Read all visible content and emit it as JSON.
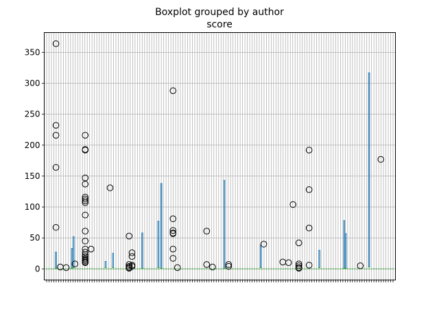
{
  "chart_data": {
    "type": "boxplot",
    "title": "Boxplot grouped by author",
    "subtitle": "score",
    "xlabel": "",
    "ylabel": "",
    "ylim": [
      -18,
      382
    ],
    "yticks": [
      0,
      50,
      100,
      150,
      200,
      250,
      300,
      350
    ],
    "grid": true,
    "category_count": 146,
    "category_labels_legible": false,
    "colors": {
      "box": "#1f77b4",
      "median": "#2ca02c",
      "outlier": "#000000",
      "grid": "#b0b0b0"
    },
    "notable_boxes": [
      {
        "position": 8,
        "q1": 1,
        "q3": 27
      },
      {
        "position": 19,
        "q1": 1,
        "q3": 33
      },
      {
        "position": 20,
        "q1": 2,
        "q3": 52
      },
      {
        "position": 42,
        "q1": 2,
        "q3": 12
      },
      {
        "position": 47,
        "q1": 2,
        "q3": 25
      },
      {
        "position": 67,
        "q1": 1,
        "q3": 58
      },
      {
        "position": 78,
        "q1": 2,
        "q3": 77
      },
      {
        "position": 80,
        "q1": 1,
        "q3": 138
      },
      {
        "position": 123,
        "q1": 1,
        "q3": 143
      },
      {
        "position": 148,
        "q1": 2,
        "q3": 38
      },
      {
        "position": 188,
        "q1": 2,
        "q3": 30
      },
      {
        "position": 205,
        "q1": 1,
        "q3": 78
      },
      {
        "position": 206,
        "q1": 1,
        "q3": 57
      },
      {
        "position": 222,
        "q1": 3,
        "q3": 317
      }
    ],
    "outliers": [
      {
        "position": 8,
        "values": [
          364,
          232,
          216,
          164,
          67
        ]
      },
      {
        "position": 11,
        "values": [
          3
        ]
      },
      {
        "position": 15,
        "values": [
          2
        ]
      },
      {
        "position": 21,
        "values": [
          8
        ]
      },
      {
        "position": 28,
        "values": [
          216,
          193,
          192,
          147,
          137,
          116,
          113,
          110,
          107,
          87,
          61,
          45,
          32,
          27,
          23,
          20,
          17,
          15,
          13,
          11,
          10
        ]
      },
      {
        "position": 32,
        "values": [
          32
        ]
      },
      {
        "position": 45,
        "values": [
          131
        ]
      },
      {
        "position": 58,
        "values": [
          53,
          7,
          4,
          2,
          1
        ]
      },
      {
        "position": 60,
        "values": [
          26,
          20,
          6,
          4
        ]
      },
      {
        "position": 88,
        "values": [
          288,
          81,
          62,
          58,
          57,
          32,
          17
        ]
      },
      {
        "position": 91,
        "values": [
          2
        ]
      },
      {
        "position": 111,
        "values": [
          61,
          7
        ]
      },
      {
        "position": 115,
        "values": [
          3
        ]
      },
      {
        "position": 126,
        "values": [
          7,
          4
        ]
      },
      {
        "position": 150,
        "values": [
          40
        ]
      },
      {
        "position": 163,
        "values": [
          11
        ]
      },
      {
        "position": 167,
        "values": [
          10
        ]
      },
      {
        "position": 170,
        "values": [
          104
        ]
      },
      {
        "position": 174,
        "values": [
          42,
          8,
          5,
          2,
          1
        ]
      },
      {
        "position": 181,
        "values": [
          192,
          128,
          66,
          6
        ]
      },
      {
        "position": 216,
        "values": [
          5
        ]
      },
      {
        "position": 230,
        "values": [
          177
        ]
      }
    ]
  }
}
